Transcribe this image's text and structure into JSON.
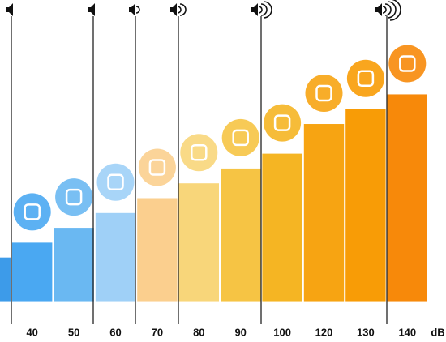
{
  "chart_data": {
    "type": "bar",
    "values": [
      30,
      40,
      50,
      60,
      70,
      80,
      90,
      100,
      120,
      130,
      140
    ],
    "colors": [
      "#3d9be9",
      "#4aa8f2",
      "#6ab8f2",
      "#9fd0f7",
      "#fbcf8e",
      "#f8d67a",
      "#f6c444",
      "#f5b523",
      "#f7a412",
      "#f89c06",
      "#f7890a"
    ],
    "ylim": [
      -15,
      155
    ],
    "x_label": "dB"
  }
}
